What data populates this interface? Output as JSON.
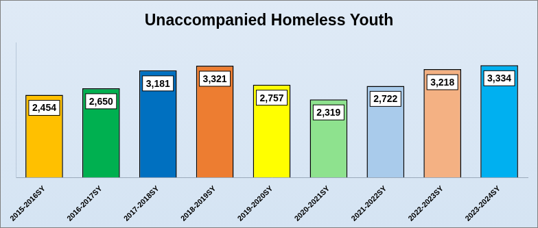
{
  "chart_data": {
    "type": "bar",
    "title": "Unaccompanied Homeless Youth",
    "categories": [
      "2015-2016SY",
      "2016-2017SY",
      "2017-2018SY",
      "2018-2019SY",
      "2019-2020SY",
      "2020-2021SY",
      "2021-2022SY",
      "2022-2023SY",
      "2023-2024SY"
    ],
    "values": [
      2454,
      2650,
      3181,
      3321,
      2757,
      2319,
      2722,
      3218,
      3334
    ],
    "value_labels": [
      "2,454",
      "2,650",
      "3,181",
      "3,321",
      "2,757",
      "2,319",
      "2,722",
      "3,218",
      "3,334"
    ],
    "colors": [
      "#ffc000",
      "#00b050",
      "#0070c0",
      "#ed7d31",
      "#ffff00",
      "#8ee28e",
      "#a9cbeb",
      "#f4b183",
      "#00b0f0"
    ],
    "ylim": [
      0,
      4000
    ],
    "grid": false,
    "data_labels": true,
    "tick_labels": "x"
  }
}
